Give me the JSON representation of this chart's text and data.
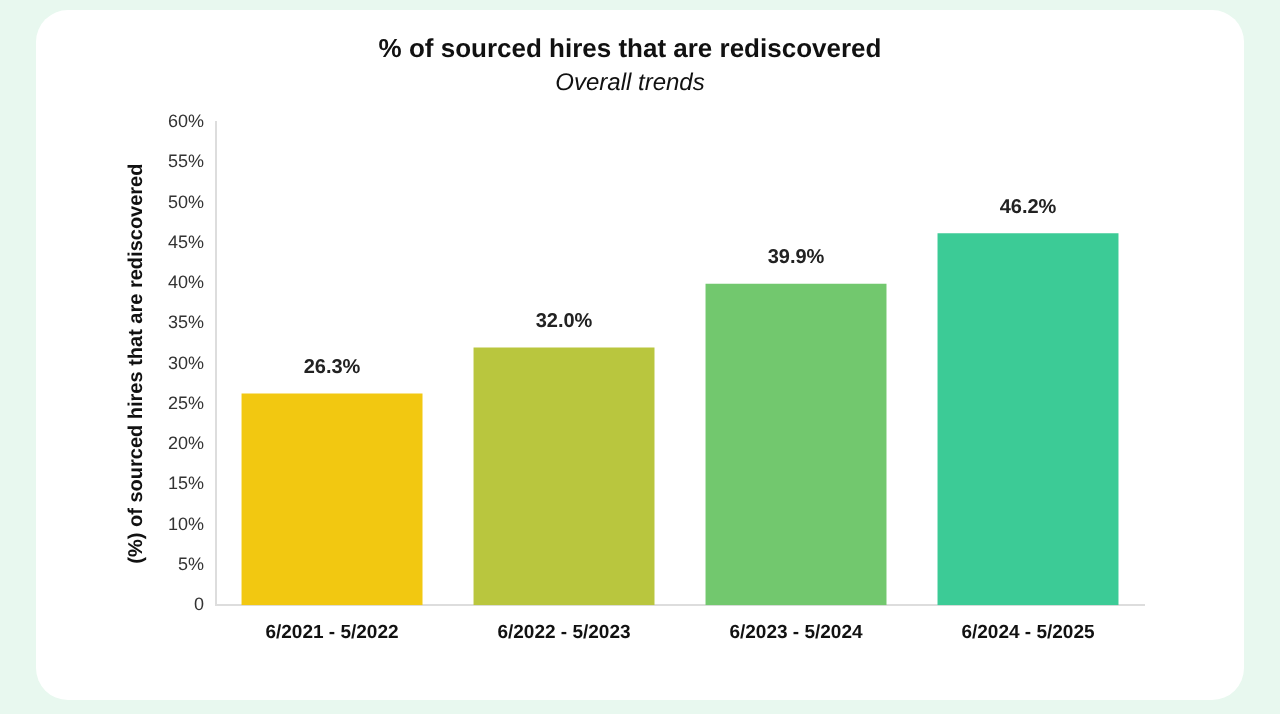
{
  "chart_data": {
    "type": "bar",
    "title": "% of sourced hires that are rediscovered",
    "subtitle": "Overall trends",
    "ylabel": "(%) of sourced hires that are rediscovered",
    "categories": [
      "6/2021 - 5/2022",
      "6/2022 - 5/2023",
      "6/2023 - 5/2024",
      "6/2024 - 5/2025"
    ],
    "values": [
      26.3,
      32.0,
      39.9,
      46.2
    ],
    "colors": [
      "#f2c811",
      "#b9c63e",
      "#72c86e",
      "#3ccb96"
    ],
    "value_labels": [
      "26.3%",
      "32.0%",
      "39.9%",
      "46.2%"
    ],
    "ylim": [
      0,
      60
    ],
    "yticks": [
      0,
      {
        "value": 5,
        "label": "5%"
      },
      {
        "value": 10,
        "label": "10%"
      },
      {
        "value": 15,
        "label": "15%"
      },
      {
        "value": 20,
        "label": "20%"
      },
      {
        "value": 25,
        "label": "25%"
      },
      {
        "value": 30,
        "label": "30%"
      },
      {
        "value": 35,
        "label": "35%"
      },
      {
        "value": 40,
        "label": "40%"
      },
      {
        "value": 45,
        "label": "45%"
      },
      {
        "value": 50,
        "label": "50%"
      },
      {
        "value": 55,
        "label": "55%"
      },
      {
        "value": 60,
        "label": "60%"
      }
    ],
    "grid": false,
    "legend": false
  }
}
